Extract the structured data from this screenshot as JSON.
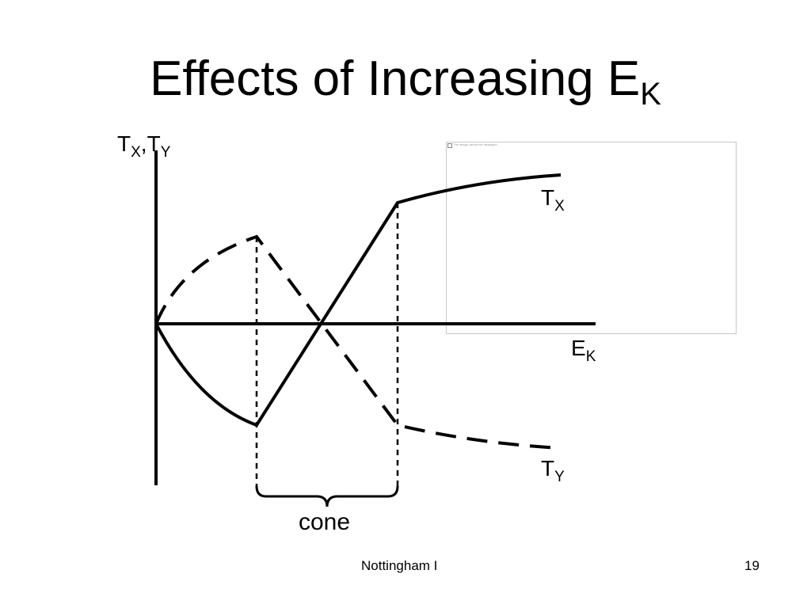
{
  "slide": {
    "title_main": "Effects of Increasing E",
    "title_sub": "K",
    "footer_center": "Nottingham I",
    "page_number": "19"
  },
  "diagram": {
    "y_axis_label": {
      "t1": "T",
      "s1": "X",
      "comma": ",",
      "t2": "T",
      "s2": "Y"
    },
    "x_axis_label": {
      "t": "E",
      "s": "K"
    },
    "curve_tx_label": {
      "t": "T",
      "s": "X"
    },
    "curve_ty_label": {
      "t": "T",
      "s": "Y"
    },
    "bracket_label": "cone",
    "image_placeholder_caption": "The image cannot be displayed."
  }
}
